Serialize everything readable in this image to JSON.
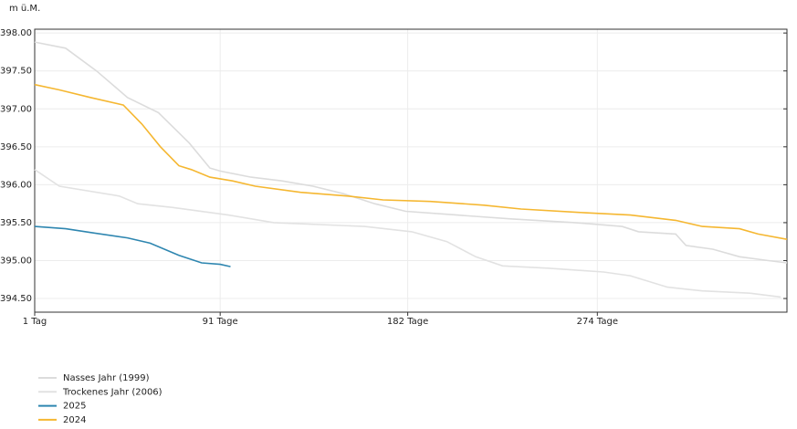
{
  "chart_data": {
    "type": "line",
    "y_label": "m ü.M.",
    "xlim": [
      1,
      366
    ],
    "ylim": [
      394.32,
      398.05
    ],
    "xticks": [
      {
        "value": 1,
        "label": "1 Tag"
      },
      {
        "value": 91,
        "label": "91 Tage"
      },
      {
        "value": 182,
        "label": "182 Tage"
      },
      {
        "value": 274,
        "label": "274 Tage"
      }
    ],
    "yticks": [
      {
        "value": 394.5,
        "label": "394.50"
      },
      {
        "value": 395,
        "label": "395.00"
      },
      {
        "value": 395.5,
        "label": "395.50"
      },
      {
        "value": 396,
        "label": "396.00"
      },
      {
        "value": 396.5,
        "label": "396.50"
      },
      {
        "value": 397,
        "label": "397.00"
      },
      {
        "value": 397.5,
        "label": "397.50"
      },
      {
        "value": 398,
        "label": "398.00"
      }
    ],
    "grid": true,
    "series": [
      {
        "name": "Nasses Jahr (1999)",
        "color": "#dcdcdc",
        "x": [
          1,
          16,
          31,
          46,
          61,
          76,
          86,
          91,
          106,
          121,
          136,
          151,
          166,
          181,
          206,
          232,
          263,
          286,
          294,
          312,
          317,
          330,
          343,
          357,
          366
        ],
        "values": [
          397.88,
          397.8,
          397.5,
          397.15,
          396.95,
          396.55,
          396.22,
          396.18,
          396.1,
          396.05,
          395.98,
          395.88,
          395.75,
          395.65,
          395.6,
          395.55,
          395.5,
          395.45,
          395.38,
          395.35,
          395.2,
          395.15,
          395.05,
          395.0,
          394.97
        ]
      },
      {
        "name": "Trockenes Jahr (2006)",
        "color": "#e2e2e2",
        "x": [
          1,
          13,
          42,
          51,
          68,
          95,
          117,
          161,
          184,
          201,
          215,
          228,
          250,
          277,
          290,
          308,
          325,
          348,
          363
        ],
        "values": [
          396.2,
          395.98,
          395.85,
          395.75,
          395.7,
          395.6,
          395.5,
          395.45,
          395.38,
          395.25,
          395.05,
          394.93,
          394.9,
          394.85,
          394.8,
          394.65,
          394.6,
          394.57,
          394.52
        ]
      },
      {
        "name": "2025",
        "color": "#2e86b0",
        "x": [
          1,
          16,
          28,
          46,
          57,
          71,
          82,
          91,
          96
        ],
        "values": [
          395.45,
          395.42,
          395.37,
          395.3,
          395.23,
          395.07,
          394.97,
          394.95,
          394.92
        ]
      },
      {
        "name": "2024",
        "color": "#f5b731",
        "x": [
          1,
          13,
          28,
          44,
          53,
          62,
          71,
          77,
          86,
          97,
          108,
          130,
          153,
          170,
          193,
          219,
          237,
          268,
          290,
          312,
          325,
          343,
          352,
          366
        ],
        "values": [
          397.32,
          397.25,
          397.15,
          397.05,
          396.8,
          396.5,
          396.25,
          396.2,
          396.1,
          396.05,
          395.98,
          395.9,
          395.85,
          395.8,
          395.78,
          395.73,
          395.68,
          395.63,
          395.6,
          395.53,
          395.45,
          395.42,
          395.35,
          395.28
        ]
      }
    ]
  }
}
